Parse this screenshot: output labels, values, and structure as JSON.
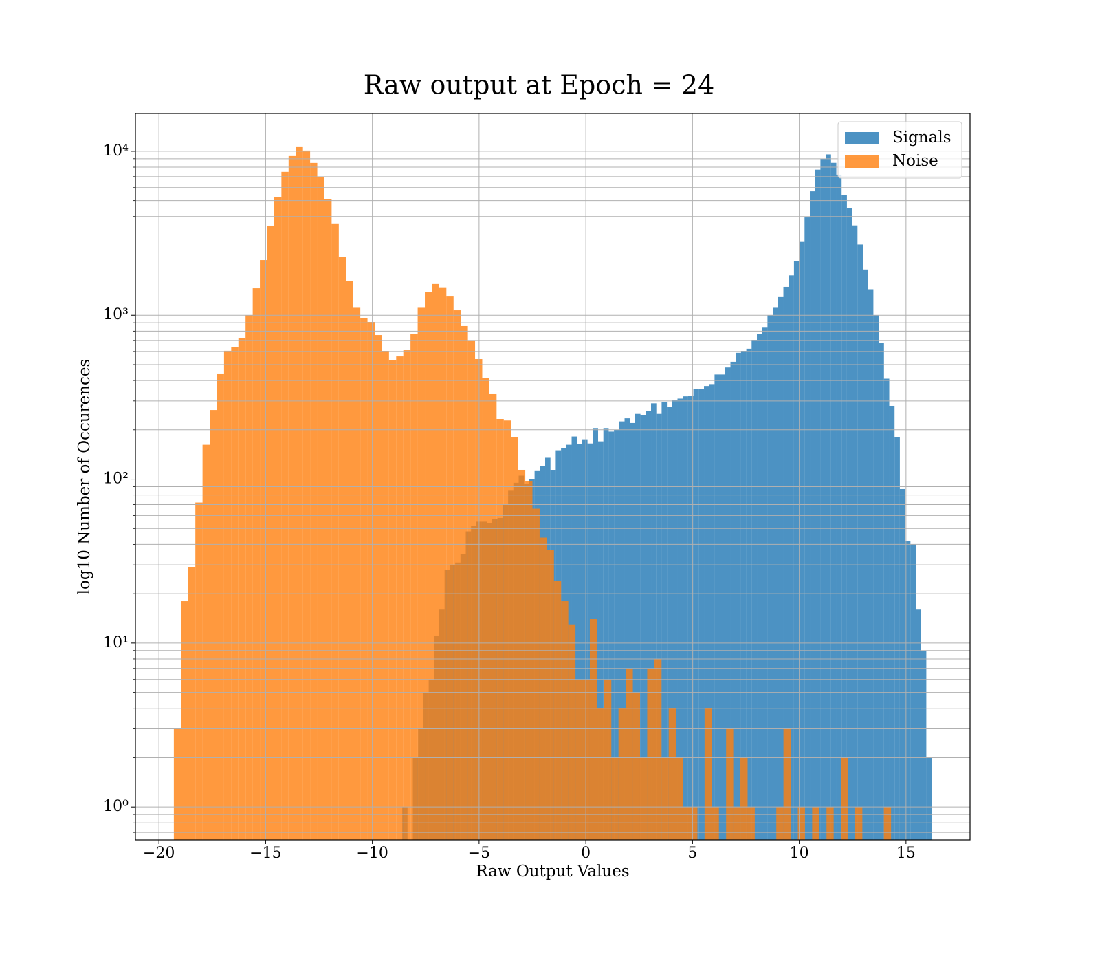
{
  "chart_data": {
    "type": "histogram",
    "title": "Raw output at Epoch = 24",
    "xlabel": "Raw Output Values",
    "ylabel": "log10 Number of Occurences",
    "yscale": "log",
    "grid": true,
    "legend": "upper right",
    "xlim": [
      -21.1,
      18.0
    ],
    "ylim": [
      0.63,
      17000
    ],
    "xticks": [
      {
        "value": -20,
        "label": "−20"
      },
      {
        "value": -15,
        "label": "−15"
      },
      {
        "value": -10,
        "label": "−10"
      },
      {
        "value": -5,
        "label": "−5"
      },
      0,
      5,
      10,
      15
    ],
    "yticks": [
      {
        "value": 1,
        "label": "10⁰"
      },
      {
        "value": 10,
        "label": "10¹"
      },
      {
        "value": 100,
        "label": "10²"
      },
      {
        "value": 1000,
        "label": "10³"
      },
      {
        "value": 10000,
        "label": "10⁴"
      }
    ],
    "yminorticks": [
      0.7,
      0.8,
      0.9,
      2,
      3,
      4,
      5,
      6,
      7,
      8,
      9,
      20,
      30,
      40,
      50,
      60,
      70,
      80,
      90,
      200,
      300,
      400,
      500,
      600,
      700,
      800,
      900,
      2000,
      3000,
      4000,
      5000,
      6000,
      7000,
      8000,
      9000
    ],
    "series": [
      {
        "name": "Signals",
        "color": "#1f77b4",
        "opacity": 0.8,
        "bins": [
          -8.6,
          -8.352,
          -8.104,
          -7.856,
          -7.608,
          -7.36,
          -7.112,
          -6.864,
          -6.616,
          -6.368,
          -6.12,
          -5.872,
          -5.624,
          -5.376,
          -5.128,
          -4.88,
          -4.632,
          -4.384,
          -4.136,
          -3.888,
          -3.64,
          -3.392,
          -3.144,
          -2.896,
          -2.648,
          -2.4,
          -2.152,
          -1.904,
          -1.656,
          -1.408,
          -1.16,
          -0.912,
          -0.664,
          -0.416,
          -0.168,
          0.08,
          0.328,
          0.576,
          0.824,
          1.072,
          1.32,
          1.568,
          1.816,
          2.064,
          2.312,
          2.56,
          2.808,
          3.056,
          3.304,
          3.552,
          3.8,
          4.048,
          4.296,
          4.544,
          4.792,
          5.04,
          5.288,
          5.536,
          5.784,
          6.032,
          6.28,
          6.528,
          6.776,
          7.024,
          7.272,
          7.52,
          7.768,
          8.016,
          8.264,
          8.512,
          8.76,
          9.008,
          9.256,
          9.504,
          9.752,
          10.0,
          10.248,
          10.496,
          10.744,
          10.992,
          11.24,
          11.488,
          11.736,
          11.984,
          12.232,
          12.48,
          12.728,
          12.976,
          13.224,
          13.472,
          13.72,
          13.968,
          14.216,
          14.464,
          14.712,
          14.96,
          15.208,
          15.456,
          15.704,
          15.952,
          16.2
        ],
        "values": [
          1,
          0,
          2,
          3,
          5,
          6,
          11,
          16,
          28,
          30,
          31,
          35,
          48,
          52,
          55,
          55,
          54,
          57,
          58,
          70,
          85,
          95,
          105,
          94,
          100,
          112,
          120,
          135,
          113,
          150,
          155,
          162,
          182,
          163,
          175,
          165,
          205,
          170,
          205,
          195,
          200,
          225,
          235,
          220,
          250,
          245,
          260,
          290,
          250,
          295,
          275,
          305,
          310,
          320,
          322,
          355,
          355,
          370,
          380,
          435,
          435,
          480,
          520,
          590,
          600,
          625,
          700,
          770,
          840,
          1000,
          1110,
          1290,
          1490,
          1750,
          2140,
          2800,
          3950,
          5700,
          7720,
          9000,
          9570,
          8500,
          7200,
          5400,
          4500,
          3530,
          2700,
          1900,
          1440,
          1000,
          680,
          410,
          280,
          181,
          87,
          42,
          40,
          16,
          9,
          2
        ]
      },
      {
        "name": "Noise",
        "color": "#ff7f0e",
        "opacity": 0.8,
        "bins": [
          -19.3,
          -18.964,
          -18.628,
          -18.292,
          -17.956,
          -17.62,
          -17.284,
          -16.948,
          -16.612,
          -16.276,
          -15.94,
          -15.604,
          -15.268,
          -14.932,
          -14.596,
          -14.26,
          -13.924,
          -13.588,
          -13.252,
          -12.916,
          -12.58,
          -12.244,
          -11.908,
          -11.572,
          -11.236,
          -10.9,
          -10.564,
          -10.228,
          -9.892,
          -9.556,
          -9.22,
          -8.884,
          -8.548,
          -8.212,
          -7.876,
          -7.54,
          -7.204,
          -6.868,
          -6.532,
          -6.196,
          -5.86,
          -5.524,
          -5.188,
          -4.852,
          -4.516,
          -4.18,
          -3.844,
          -3.508,
          -3.172,
          -2.836,
          -2.5,
          -2.164,
          -1.828,
          -1.492,
          -1.156,
          -0.82,
          -0.484,
          -0.148,
          0.188,
          0.524,
          0.86,
          1.196,
          1.532,
          1.868,
          2.204,
          2.54,
          2.876,
          3.212,
          3.548,
          3.884,
          4.22,
          4.556,
          4.892,
          5.228,
          5.564,
          5.9,
          6.236,
          6.572,
          6.908,
          7.244,
          7.58,
          7.916,
          8.252,
          8.588,
          8.924,
          9.26,
          9.596,
          9.932,
          10.268,
          10.604,
          10.94,
          11.276,
          11.612,
          11.948,
          12.284,
          12.62,
          12.956,
          13.292,
          13.628,
          13.964,
          14.3
        ],
        "values": [
          3,
          18,
          29,
          72,
          162,
          264,
          441,
          607,
          637,
          722,
          1000,
          1460,
          2170,
          3520,
          5230,
          7490,
          9350,
          10700,
          10100,
          8490,
          6930,
          5130,
          3630,
          2260,
          1610,
          1110,
          955,
          910,
          757,
          601,
          530,
          561,
          612,
          765,
          1110,
          1380,
          1550,
          1480,
          1300,
          1072,
          859,
          695,
          540,
          416,
          330,
          233,
          228,
          181,
          114,
          97,
          66,
          44,
          37,
          24,
          18,
          13,
          6,
          6,
          14,
          4,
          6,
          2,
          4,
          7,
          5,
          2,
          7,
          8,
          2,
          4,
          2,
          1,
          1,
          0,
          4,
          1,
          0,
          3,
          1,
          2,
          1,
          0,
          0,
          0,
          1,
          3,
          0,
          1,
          0,
          1,
          0,
          1,
          0,
          2,
          0,
          1,
          0,
          0,
          0,
          1
        ]
      }
    ]
  }
}
